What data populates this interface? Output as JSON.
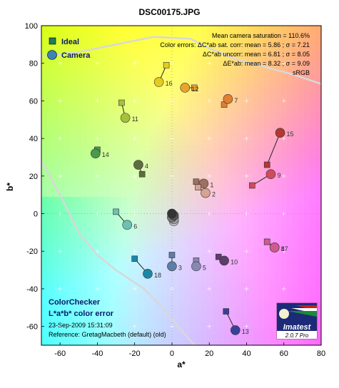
{
  "chart_data": {
    "type": "scatter",
    "title": "DSC00175.JPG",
    "xlabel": "a*",
    "ylabel": "b*",
    "xlim": [
      -70,
      80
    ],
    "ylim": [
      -70,
      100
    ],
    "xticks": [
      -60,
      -40,
      -20,
      0,
      20,
      40,
      60,
      80
    ],
    "yticks": [
      -60,
      -40,
      -20,
      0,
      20,
      40,
      60,
      80,
      100
    ],
    "grid": "light crosses",
    "legend_position": "top-left",
    "series": [
      {
        "name": "Ideal",
        "marker": "square",
        "color": "varies by patch"
      },
      {
        "name": "Camera",
        "marker": "circle",
        "color": "varies by patch"
      }
    ],
    "points": [
      {
        "label": "1",
        "ideal": [
          13,
          17
        ],
        "camera": [
          17,
          16
        ],
        "color": "#9e7060"
      },
      {
        "label": "2",
        "ideal": [
          14,
          14
        ],
        "camera": [
          18,
          11
        ],
        "color": "#d7a390"
      },
      {
        "label": "3",
        "ideal": [
          0,
          -22
        ],
        "camera": [
          0,
          -28
        ],
        "color": "#5b7fa8"
      },
      {
        "label": "4",
        "ideal": [
          -16,
          21
        ],
        "camera": [
          -18,
          26
        ],
        "color": "#5f6d3e"
      },
      {
        "label": "5",
        "ideal": [
          13,
          -25
        ],
        "camera": [
          13,
          -28
        ],
        "color": "#8a86b6"
      },
      {
        "label": "6",
        "ideal": [
          -30,
          1
        ],
        "camera": [
          -24,
          -6
        ],
        "color": "#6cc1b2"
      },
      {
        "label": "7",
        "ideal": [
          28,
          58
        ],
        "camera": [
          30,
          61
        ],
        "color": "#e08030"
      },
      {
        "label": "8",
        "ideal": [
          51,
          -15
        ],
        "camera": [
          55,
          -18
        ],
        "color": "#cf5a8e"
      },
      {
        "label": "9",
        "ideal": [
          43,
          15
        ],
        "camera": [
          53,
          21
        ],
        "color": "#d24a5c"
      },
      {
        "label": "10",
        "ideal": [
          25,
          -23
        ],
        "camera": [
          28,
          -25
        ],
        "color": "#5e3c6c"
      },
      {
        "label": "11",
        "ideal": [
          -27,
          59
        ],
        "camera": [
          -25,
          51
        ],
        "color": "#a6c03c"
      },
      {
        "label": "12",
        "ideal": [
          12,
          67
        ],
        "camera": [
          7,
          67
        ],
        "color": "#eaa42e"
      },
      {
        "label": "13",
        "ideal": [
          29,
          -52
        ],
        "camera": [
          34,
          -62
        ],
        "color": "#3b3f98"
      },
      {
        "label": "14",
        "ideal": [
          -40,
          34
        ],
        "camera": [
          -41,
          32
        ],
        "color": "#479b4b"
      },
      {
        "label": "15",
        "ideal": [
          51,
          26
        ],
        "camera": [
          58,
          43
        ],
        "color": "#b33830"
      },
      {
        "label": "16",
        "ideal": [
          -3,
          79
        ],
        "camera": [
          -7,
          70
        ],
        "color": "#e6cb1f"
      },
      {
        "label": "17",
        "ideal": [
          51,
          -15
        ],
        "camera": [
          55,
          -18
        ],
        "color": "#cf5a8e"
      },
      {
        "label": "18",
        "ideal": [
          -20,
          -24
        ],
        "camera": [
          -13,
          -32
        ],
        "color": "#1c87a7"
      }
    ],
    "neutral_points": [
      {
        "ideal": [
          0,
          0
        ],
        "camera": [
          1,
          -2
        ],
        "color": "#ffffff"
      },
      {
        "ideal": [
          0,
          0
        ],
        "camera": [
          1,
          -4
        ],
        "color": "#c8c8c8"
      },
      {
        "ideal": [
          0,
          0
        ],
        "camera": [
          1,
          -3
        ],
        "color": "#a0a0a0"
      },
      {
        "ideal": [
          0,
          0
        ],
        "camera": [
          0,
          -2
        ],
        "color": "#7a7a7a"
      },
      {
        "ideal": [
          0,
          0
        ],
        "camera": [
          1,
          -1
        ],
        "color": "#555555"
      },
      {
        "ideal": [
          0,
          0
        ],
        "camera": [
          0,
          0
        ],
        "color": "#343434"
      }
    ],
    "gamut_curve_top": [
      [
        -70,
        84
      ],
      [
        -50,
        86
      ],
      [
        -30,
        90
      ],
      [
        -10,
        94
      ],
      [
        10,
        93
      ],
      [
        20,
        88
      ],
      [
        35,
        82
      ],
      [
        50,
        78
      ],
      [
        65,
        74
      ],
      [
        80,
        69
      ]
    ],
    "gamut_curve_left": [
      [
        -70,
        28
      ],
      [
        -60,
        10
      ],
      [
        -50,
        -10
      ],
      [
        -40,
        -22
      ],
      [
        -30,
        -30
      ],
      [
        -15,
        -40
      ],
      [
        -5,
        -50
      ],
      [
        5,
        -62
      ],
      [
        12,
        -70
      ]
    ]
  },
  "stats": {
    "line1": "Mean camera saturation = 110.6%",
    "line2": "Color errors:  ΔC*ab sat. corr:  mean = 5.86 ;  σ = 7.21",
    "line3": "ΔC*ab uncorr:  mean = 6.81 ;  σ = 8.05",
    "line4": "ΔE*ab:  mean = 8.32 ;  σ = 9.09",
    "line5": "sRGB"
  },
  "legend": {
    "ideal": "Ideal",
    "camera": "Camera"
  },
  "footer": {
    "line1": "ColorChecker",
    "line2": "L*a*b* color error",
    "line3": "23-Sep-2009 15:31:09",
    "line4": "Reference: GretagMacbeth (default) (old)"
  },
  "logo": {
    "name": "Imatest",
    "version": "2.0.7  Pro"
  }
}
